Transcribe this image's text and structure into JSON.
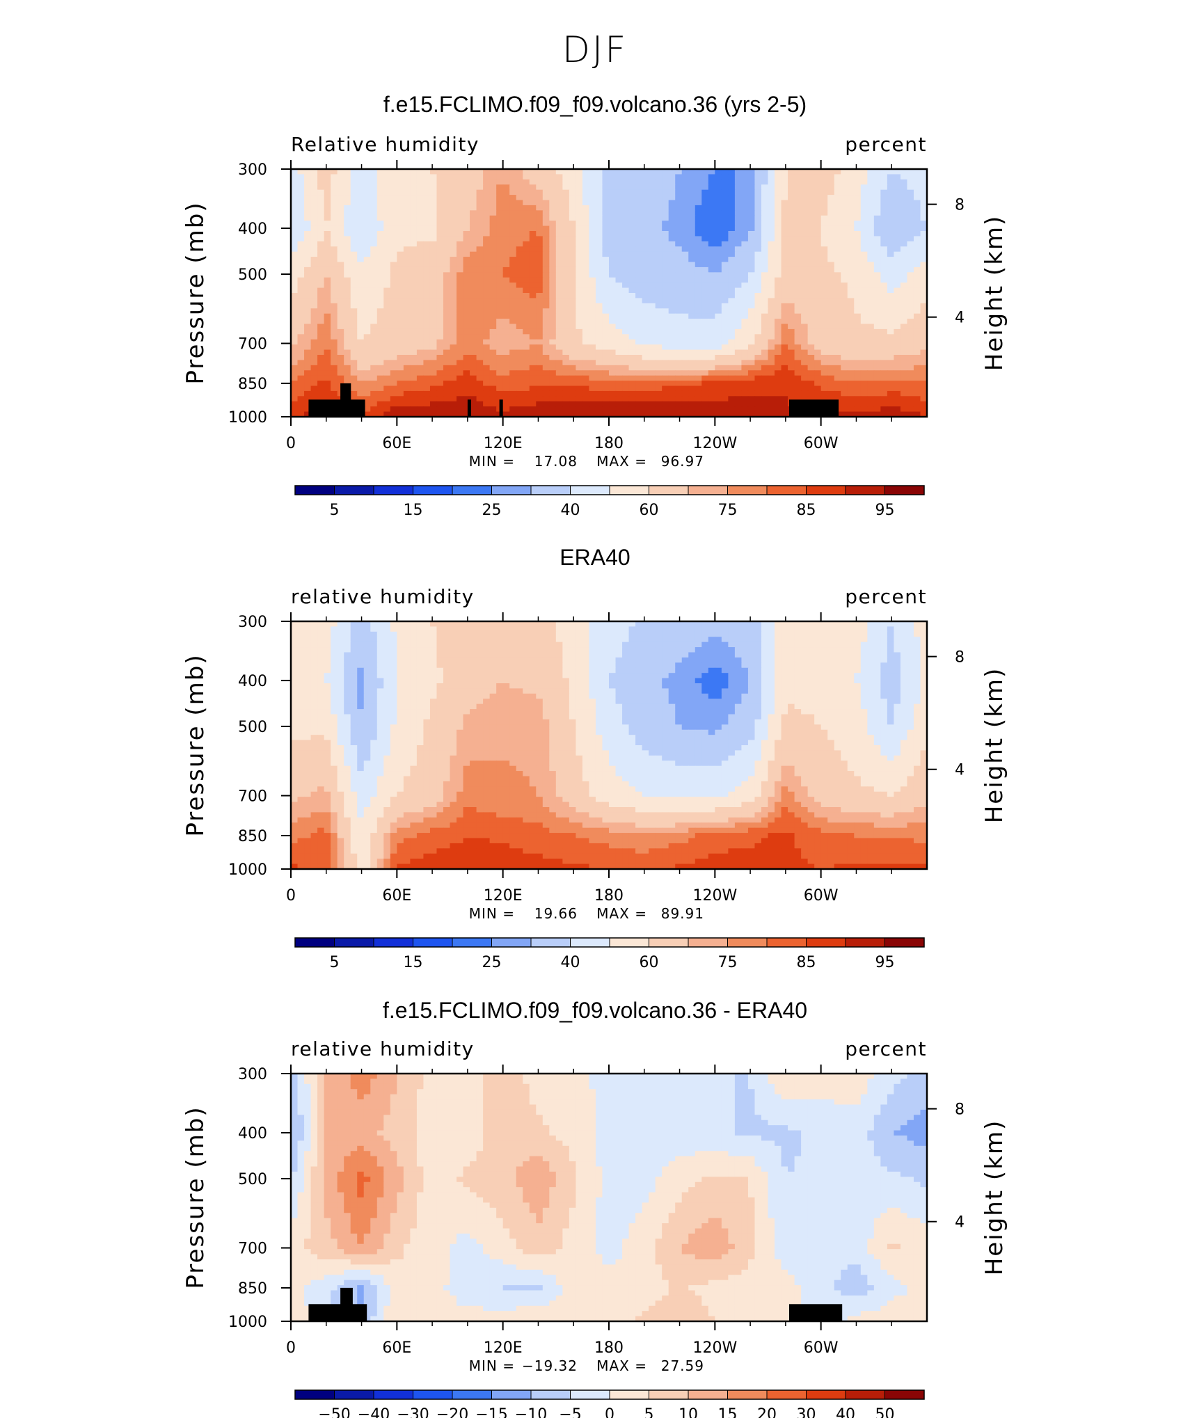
{
  "figure_title": "DJF",
  "colors": {
    "rh_levels": [
      "#000080",
      "#0a1aa8",
      "#1230d8",
      "#1e55f0",
      "#3c78f4",
      "#82a6f6",
      "#b9cef9",
      "#dce9fc",
      "#fbe7d6",
      "#f8cfb6",
      "#f5b091",
      "#f08b5c",
      "#ec6330",
      "#de3c10",
      "#b81e08",
      "#8a0505"
    ],
    "diff_levels": [
      "#000080",
      "#0a1aa8",
      "#1230d8",
      "#1e55f0",
      "#3c78f4",
      "#82a6f6",
      "#b9cef9",
      "#dce9fc",
      "#fbe7d6",
      "#f8cfb6",
      "#f5b091",
      "#f08b5c",
      "#ec6330",
      "#de3c10",
      "#b81e08",
      "#8a0505"
    ],
    "terrain": "#000000"
  },
  "axis_labels": {
    "pressure": "Pressure (mb)",
    "height": "Height (km)",
    "pressure_ticks": [
      "300",
      "400",
      "500",
      "700",
      "850",
      "1000"
    ],
    "height_ticks": [
      "8",
      "4"
    ],
    "lon_ticks": [
      "0",
      "60E",
      "120E",
      "180",
      "120W",
      "60W"
    ]
  },
  "panels": [
    {
      "title": "f.e15.FCLIMO.f09_f09.volcano.36 (yrs 2-5)",
      "left_label": "Relative humidity",
      "right_label": "percent",
      "min_label": "MIN =",
      "min_value": "17.08",
      "max_label": "MAX =",
      "max_value": "96.97",
      "colorbar_labels": [
        "5",
        "15",
        "25",
        "40",
        "60",
        "75",
        "85",
        "95"
      ]
    },
    {
      "title": "ERA40",
      "left_label": "relative humidity",
      "right_label": "percent",
      "min_label": "MIN =",
      "min_value": "19.66",
      "max_label": "MAX =",
      "max_value": "89.91",
      "colorbar_labels": [
        "5",
        "15",
        "25",
        "40",
        "60",
        "75",
        "85",
        "95"
      ]
    },
    {
      "title": "f.e15.FCLIMO.f09_f09.volcano.36 - ERA40",
      "left_label": "relative humidity",
      "right_label": "percent",
      "min_label": "MIN =",
      "min_value": "−19.32",
      "max_label": "MAX =",
      "max_value": "27.59",
      "colorbar_labels": [
        "−50",
        "−40",
        "−30",
        "−20",
        "−15",
        "−10",
        "−5",
        "0",
        "5",
        "10",
        "15",
        "20",
        "30",
        "40",
        "50"
      ]
    }
  ],
  "chart_data": [
    {
      "type": "heatmap",
      "title": "f.e15.FCLIMO.f09_f09.volcano.36 (yrs 2-5)",
      "variable": "Relative humidity",
      "units": "percent",
      "x_axis": {
        "label": "",
        "ticks": [
          "0",
          "60E",
          "120E",
          "180",
          "120W",
          "60W"
        ],
        "range_deg": [
          0,
          360
        ]
      },
      "y_axis": {
        "label": "Pressure (mb)",
        "ticks": [
          300,
          400,
          500,
          700,
          850,
          1000
        ],
        "range": [
          1000,
          300
        ],
        "scale": "log"
      },
      "y2_axis": {
        "label": "Height (km)",
        "ticks": [
          8,
          4
        ]
      },
      "contour_levels": [
        5,
        10,
        15,
        20,
        25,
        30,
        40,
        50,
        60,
        70,
        75,
        80,
        85,
        90,
        95
      ],
      "min": 17.08,
      "max": 96.97,
      "lon": [
        0,
        20,
        40,
        60,
        80,
        100,
        120,
        140,
        160,
        180,
        200,
        220,
        240,
        260,
        280,
        300,
        320,
        340,
        360
      ],
      "lev": [
        300,
        400,
        500,
        700,
        850,
        1000
      ],
      "values": [
        [
          45,
          65,
          45,
          60,
          60,
          65,
          75,
          65,
          55,
          35,
          35,
          30,
          25,
          25,
          60,
          65,
          55,
          40,
          45
        ],
        [
          40,
          60,
          40,
          58,
          58,
          70,
          78,
          80,
          60,
          35,
          32,
          28,
          20,
          28,
          62,
          60,
          50,
          30,
          40
        ],
        [
          55,
          70,
          52,
          62,
          65,
          78,
          80,
          83,
          60,
          40,
          35,
          33,
          30,
          40,
          65,
          62,
          58,
          45,
          55
        ],
        [
          68,
          80,
          60,
          65,
          68,
          78,
          72,
          75,
          62,
          55,
          48,
          45,
          45,
          58,
          80,
          66,
          62,
          63,
          68
        ],
        [
          80,
          86,
          75,
          80,
          84,
          88,
          82,
          84,
          84,
          82,
          82,
          84,
          86,
          88,
          90,
          84,
          80,
          82,
          80
        ],
        [
          90,
          92,
          86,
          94,
          94,
          94,
          92,
          94,
          95,
          95,
          96,
          95,
          94,
          94,
          90,
          92,
          92,
          93,
          90
        ]
      ],
      "terrain": [
        {
          "lon_start": 10,
          "lon_end": 42,
          "top_mb": 920
        },
        {
          "lon_start": 28,
          "lon_end": 34,
          "top_mb": 850
        },
        {
          "lon_start": 100,
          "lon_end": 102,
          "top_mb": 920
        },
        {
          "lon_start": 118,
          "lon_end": 120,
          "top_mb": 920
        },
        {
          "lon_start": 282,
          "lon_end": 310,
          "top_mb": 920
        }
      ]
    },
    {
      "type": "heatmap",
      "title": "ERA40",
      "variable": "relative humidity",
      "units": "percent",
      "x_axis": {
        "label": "",
        "ticks": [
          "0",
          "60E",
          "120E",
          "180",
          "120W",
          "60W"
        ],
        "range_deg": [
          0,
          360
        ]
      },
      "y_axis": {
        "label": "Pressure (mb)",
        "ticks": [
          300,
          400,
          500,
          700,
          850,
          1000
        ],
        "range": [
          1000,
          300
        ],
        "scale": "log"
      },
      "y2_axis": {
        "label": "Height (km)",
        "ticks": [
          8,
          4
        ]
      },
      "contour_levels": [
        5,
        10,
        15,
        20,
        25,
        30,
        40,
        50,
        60,
        70,
        75,
        80,
        85,
        90,
        95
      ],
      "min": 19.66,
      "max": 89.91,
      "lon": [
        0,
        20,
        40,
        60,
        80,
        100,
        120,
        140,
        160,
        180,
        200,
        220,
        240,
        260,
        280,
        300,
        320,
        340,
        360
      ],
      "lev": [
        300,
        400,
        500,
        700,
        850,
        1000
      ],
      "values": [
        [
          55,
          55,
          35,
          52,
          60,
          65,
          68,
          65,
          55,
          45,
          38,
          35,
          32,
          35,
          55,
          60,
          55,
          40,
          55
        ],
        [
          52,
          50,
          28,
          50,
          58,
          66,
          70,
          68,
          58,
          40,
          32,
          28,
          22,
          30,
          58,
          58,
          50,
          35,
          52
        ],
        [
          58,
          58,
          30,
          52,
          62,
          72,
          74,
          74,
          60,
          45,
          35,
          30,
          28,
          35,
          62,
          60,
          55,
          40,
          58
        ],
        [
          68,
          72,
          45,
          60,
          66,
          78,
          76,
          75,
          65,
          55,
          50,
          48,
          48,
          55,
          78,
          66,
          62,
          60,
          68
        ],
        [
          78,
          82,
          52,
          78,
          82,
          85,
          84,
          82,
          80,
          78,
          76,
          78,
          82,
          84,
          86,
          82,
          80,
          80,
          78
        ],
        [
          86,
          84,
          55,
          86,
          88,
          88,
          88,
          87,
          86,
          85,
          84,
          86,
          88,
          87,
          86,
          85,
          86,
          86,
          86
        ]
      ]
    },
    {
      "type": "heatmap",
      "title": "f.e15.FCLIMO.f09_f09.volcano.36 - ERA40",
      "variable": "relative humidity",
      "units": "percent",
      "x_axis": {
        "label": "",
        "ticks": [
          "0",
          "60E",
          "120E",
          "180",
          "120W",
          "60W"
        ],
        "range_deg": [
          0,
          360
        ]
      },
      "y_axis": {
        "label": "Pressure (mb)",
        "ticks": [
          300,
          400,
          500,
          700,
          850,
          1000
        ],
        "range": [
          1000,
          300
        ],
        "scale": "log"
      },
      "y2_axis": {
        "label": "Height (km)",
        "ticks": [
          8,
          4
        ]
      },
      "contour_levels": [
        -50,
        -40,
        -30,
        -20,
        -15,
        -10,
        -5,
        0,
        5,
        10,
        15,
        20,
        30,
        40,
        50
      ],
      "min": -19.32,
      "max": 27.59,
      "lon": [
        0,
        20,
        40,
        60,
        80,
        100,
        120,
        140,
        160,
        180,
        200,
        220,
        240,
        260,
        280,
        300,
        320,
        340,
        360
      ],
      "lev": [
        300,
        400,
        500,
        700,
        850,
        1000
      ],
      "values": [
        [
          -8,
          10,
          18,
          10,
          3,
          2,
          8,
          3,
          2,
          -2,
          -2,
          -2,
          -5,
          -5,
          5,
          3,
          3,
          -3,
          -8
        ],
        [
          -12,
          10,
          12,
          8,
          2,
          2,
          8,
          6,
          3,
          -2,
          -2,
          -3,
          -4,
          -6,
          -6,
          -4,
          -2,
          -10,
          -12
        ],
        [
          -6,
          12,
          22,
          12,
          2,
          6,
          8,
          14,
          6,
          -2,
          -2,
          3,
          6,
          5,
          -5,
          -4,
          -3,
          -4,
          -6
        ],
        [
          3,
          8,
          15,
          6,
          2,
          -2,
          3,
          8,
          3,
          -2,
          3,
          10,
          14,
          6,
          -3,
          -4,
          -3,
          6,
          3
        ],
        [
          2,
          -3,
          -12,
          3,
          2,
          -3,
          -5,
          -6,
          3,
          2,
          2,
          6,
          3,
          3,
          2,
          -3,
          -8,
          -2,
          2
        ],
        [
          4,
          -4,
          -10,
          5,
          3,
          2,
          3,
          4,
          2,
          3,
          6,
          8,
          5,
          3,
          2,
          -3,
          2,
          3,
          4
        ]
      ],
      "terrain": [
        {
          "lon_start": 10,
          "lon_end": 43,
          "top_mb": 920
        },
        {
          "lon_start": 28,
          "lon_end": 35,
          "top_mb": 850
        },
        {
          "lon_start": 282,
          "lon_end": 312,
          "top_mb": 920
        }
      ]
    }
  ]
}
